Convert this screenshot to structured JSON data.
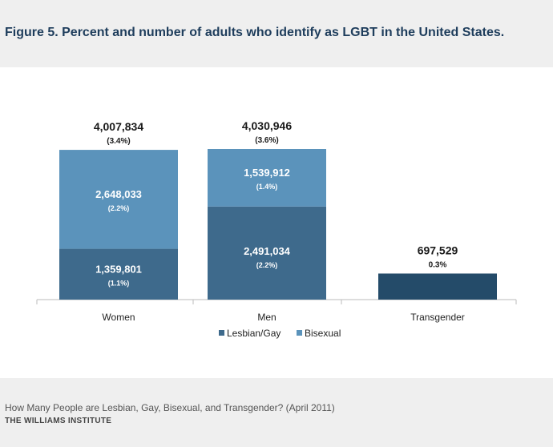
{
  "header": {
    "title": "Figure 5. Percent and number of adults who identify as LGBT in the United States."
  },
  "footer": {
    "source": "How Many People are Lesbian, Gay, Bisexual, and Transgender? (April 2011)",
    "organization": "THE WILLIAMS INSTITUTE"
  },
  "colors": {
    "lesbian_gay": "#3e6a8c",
    "bisexual": "#5b93bb",
    "transgender": "#244b69",
    "axis": "#bbbbbb",
    "label_dark": "#1a1a1a",
    "label_light": "#ffffff"
  },
  "chart_data": {
    "type": "bar",
    "stacked": true,
    "categories": [
      "Women",
      "Men",
      "Transgender"
    ],
    "series": [
      {
        "name": "Lesbian/Gay",
        "key": "lesbian_gay",
        "values": [
          1359801,
          2491034,
          null
        ],
        "labels": [
          "1,359,801",
          "2,491,034",
          ""
        ],
        "pct": [
          "(1.1%)",
          "(2.2%)",
          ""
        ]
      },
      {
        "name": "Bisexual",
        "key": "bisexual",
        "values": [
          2648033,
          1539912,
          null
        ],
        "labels": [
          "2,648,033",
          "1,539,912",
          ""
        ],
        "pct": [
          "(2.2%)",
          "(1.4%)",
          ""
        ]
      },
      {
        "name": "Transgender",
        "key": "transgender",
        "values": [
          null,
          null,
          697529
        ],
        "labels": [
          "",
          "",
          ""
        ],
        "pct": [
          "",
          "",
          ""
        ]
      }
    ],
    "totals": [
      "4,007,834",
      "4,030,946",
      "697,529"
    ],
    "total_pct": [
      "(3.4%)",
      "(3.6%)",
      "0.3%"
    ],
    "legend": [
      "Lesbian/Gay",
      "Bisexual"
    ],
    "legend_position": "bottom-center",
    "ylim": [
      0,
      4500000
    ],
    "xlabel": "",
    "ylabel": ""
  }
}
